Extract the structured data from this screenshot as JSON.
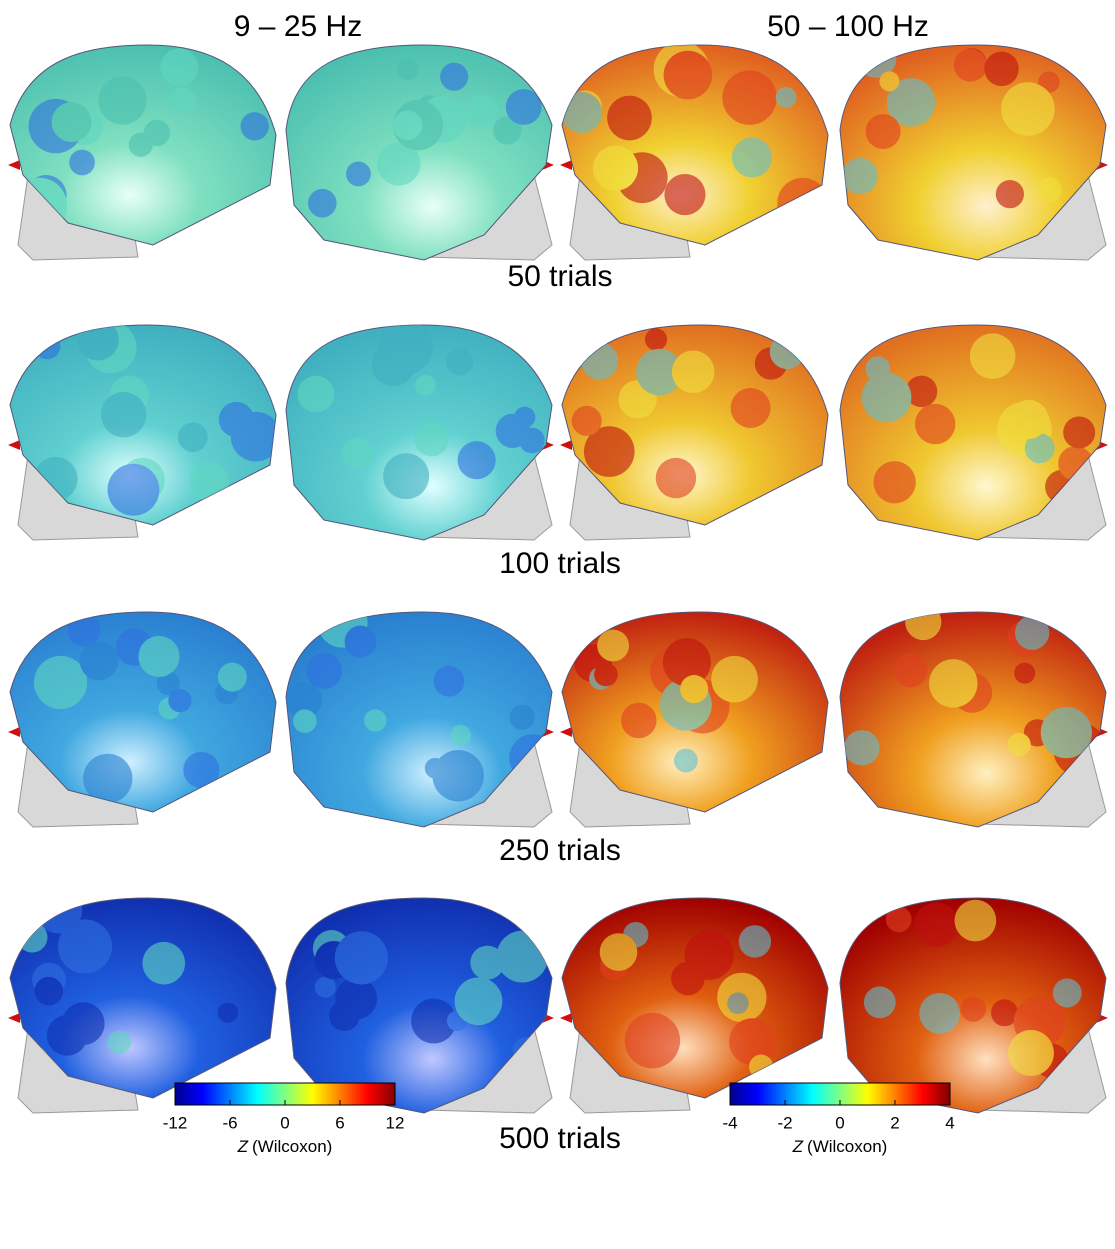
{
  "columns": [
    {
      "title": "9 – 25 Hz"
    },
    {
      "title": "50 – 100 Hz"
    }
  ],
  "rows": [
    "50 trials",
    "100 trials",
    "250 trials",
    "500 trials"
  ],
  "colorbars": [
    {
      "lim": [
        -12,
        12
      ],
      "ticks": [
        -12,
        -6,
        0,
        6,
        12
      ],
      "label_symbol": "Z",
      "label": "(Wilcoxon)"
    },
    {
      "lim": [
        -4,
        4
      ],
      "ticks": [
        -4,
        -2,
        0,
        2,
        4
      ],
      "label_symbol": "Z",
      "label": "(Wilcoxon)"
    }
  ]
}
